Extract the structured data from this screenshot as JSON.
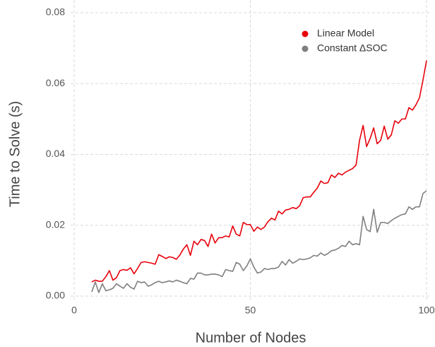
{
  "chart_data": {
    "type": "line",
    "xlabel": "Number of Nodes",
    "ylabel": "Time to Solve (s)",
    "x": [
      5,
      6,
      7,
      8,
      9,
      10,
      11,
      12,
      13,
      14,
      15,
      16,
      17,
      18,
      19,
      20,
      21,
      22,
      23,
      24,
      25,
      26,
      27,
      28,
      29,
      30,
      31,
      32,
      33,
      34,
      35,
      36,
      37,
      38,
      39,
      40,
      41,
      42,
      43,
      44,
      45,
      46,
      47,
      48,
      49,
      50,
      51,
      52,
      53,
      54,
      55,
      56,
      57,
      58,
      59,
      60,
      61,
      62,
      63,
      64,
      65,
      66,
      67,
      68,
      69,
      70,
      71,
      72,
      73,
      74,
      75,
      76,
      77,
      78,
      79,
      80,
      81,
      82,
      83,
      84,
      85,
      86,
      87,
      88,
      89,
      90,
      91,
      92,
      93,
      94,
      95,
      96,
      97,
      98,
      99,
      100
    ],
    "series": [
      {
        "name": "Linear Model",
        "color": "#e8000b",
        "values": [
          0.004,
          0.0045,
          0.0042,
          0.0042,
          0.0055,
          0.0072,
          0.0045,
          0.0052,
          0.0072,
          0.0075,
          0.0073,
          0.008,
          0.0063,
          0.0078,
          0.0095,
          0.0097,
          0.0095,
          0.0093,
          0.009,
          0.0117,
          0.0112,
          0.0106,
          0.0111,
          0.0109,
          0.0104,
          0.0116,
          0.0133,
          0.0145,
          0.0115,
          0.0155,
          0.0145,
          0.016,
          0.0157,
          0.014,
          0.0175,
          0.015,
          0.0165,
          0.0165,
          0.017,
          0.0167,
          0.0198,
          0.0175,
          0.017,
          0.0208,
          0.0202,
          0.0202,
          0.0183,
          0.0195,
          0.0188,
          0.0195,
          0.021,
          0.022,
          0.0215,
          0.024,
          0.0232,
          0.0243,
          0.0245,
          0.025,
          0.0247,
          0.0255,
          0.0278,
          0.028,
          0.028,
          0.0293,
          0.0305,
          0.0325,
          0.0318,
          0.032,
          0.0342,
          0.0335,
          0.0347,
          0.0342,
          0.035,
          0.0355,
          0.036,
          0.037,
          0.044,
          0.0482,
          0.0422,
          0.0445,
          0.0475,
          0.043,
          0.044,
          0.048,
          0.0443,
          0.0455,
          0.0495,
          0.0488,
          0.05,
          0.05,
          0.0532,
          0.0525,
          0.054,
          0.056,
          0.061,
          0.0665
        ]
      },
      {
        "name": "Constant ΔSOC",
        "color": "#7f7f7f",
        "values": [
          0.0012,
          0.004,
          0.001,
          0.0035,
          0.0015,
          0.0018,
          0.0022,
          0.0035,
          0.0028,
          0.0022,
          0.0035,
          0.0025,
          0.002,
          0.0042,
          0.0038,
          0.004,
          0.0028,
          0.0032,
          0.0038,
          0.0042,
          0.0038,
          0.004,
          0.0043,
          0.004,
          0.0045,
          0.0042,
          0.0038,
          0.0035,
          0.005,
          0.0048,
          0.0065,
          0.0065,
          0.006,
          0.006,
          0.0062,
          0.0062,
          0.006,
          0.0055,
          0.0075,
          0.0072,
          0.007,
          0.0095,
          0.009,
          0.0072,
          0.0085,
          0.0105,
          0.0082,
          0.0065,
          0.0068,
          0.0078,
          0.0075,
          0.0078,
          0.0078,
          0.0082,
          0.0098,
          0.0088,
          0.0103,
          0.0093,
          0.0098,
          0.0105,
          0.0103,
          0.0105,
          0.0108,
          0.0115,
          0.0113,
          0.0122,
          0.0115,
          0.012,
          0.0128,
          0.013,
          0.0135,
          0.0143,
          0.014,
          0.0155,
          0.0145,
          0.0148,
          0.0145,
          0.0225,
          0.0188,
          0.0182,
          0.0245,
          0.018,
          0.0208,
          0.0208,
          0.0205,
          0.0213,
          0.022,
          0.0225,
          0.023,
          0.0232,
          0.0252,
          0.0245,
          0.0252,
          0.0252,
          0.029,
          0.0297
        ]
      }
    ],
    "xlim": [
      0,
      100
    ],
    "ylim": [
      0,
      0.08
    ],
    "xticks": [
      0,
      50,
      100
    ],
    "yticks": [
      {
        "value": 0,
        "label": "0.00"
      },
      0.02,
      0.04,
      0.06,
      0.08
    ],
    "grid": true,
    "legend": "upper right"
  }
}
